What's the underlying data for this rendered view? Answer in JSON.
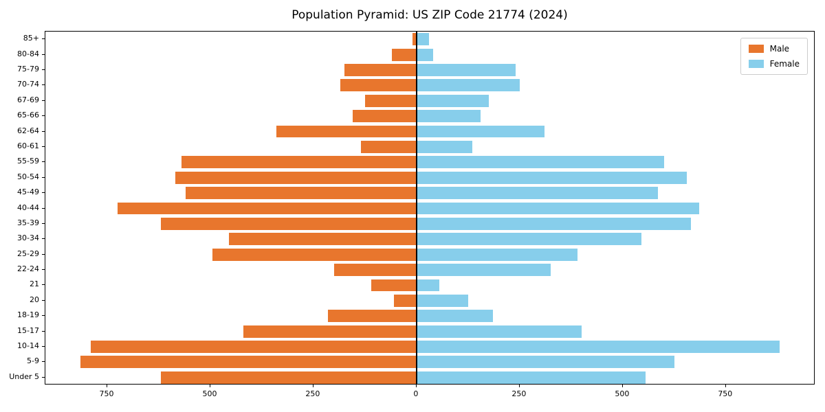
{
  "chart_data": {
    "type": "bar",
    "subtype": "population-pyramid",
    "title": "Population Pyramid: US ZIP Code 21774 (2024)",
    "xlabel": "",
    "ylabel": "",
    "grid": false,
    "categories": [
      "85+",
      "80-84",
      "75-79",
      "70-74",
      "67-69",
      "65-66",
      "62-64",
      "60-61",
      "55-59",
      "50-54",
      "45-49",
      "40-44",
      "35-39",
      "30-34",
      "25-29",
      "22-24",
      "21",
      "20",
      "18-19",
      "15-17",
      "10-14",
      "5-9",
      "Under 5"
    ],
    "series": [
      {
        "name": "Male",
        "side": "left",
        "color": "#e8762d",
        "values": [
          10,
          60,
          175,
          185,
          125,
          155,
          340,
          135,
          570,
          585,
          560,
          725,
          620,
          455,
          495,
          200,
          110,
          55,
          215,
          420,
          790,
          815,
          620
        ]
      },
      {
        "name": "Female",
        "side": "right",
        "color": "#87ceeb",
        "values": [
          30,
          40,
          240,
          250,
          175,
          155,
          310,
          135,
          600,
          655,
          585,
          685,
          665,
          545,
          390,
          325,
          55,
          125,
          185,
          400,
          880,
          625,
          555
        ]
      }
    ],
    "x_axis": {
      "tick_values": [
        -750,
        -500,
        -250,
        0,
        250,
        500,
        750
      ],
      "tick_labels": [
        "750",
        "500",
        "250",
        "0",
        "250",
        "500",
        "750"
      ],
      "xlim": [
        -900,
        967
      ]
    },
    "legend": {
      "position": "top-right",
      "entries": [
        {
          "label": "Male",
          "color": "#e8762d"
        },
        {
          "label": "Female",
          "color": "#87ceeb"
        }
      ]
    }
  },
  "colors": {
    "male": "#e8762d",
    "female": "#87ceeb",
    "axis": "#000000",
    "background": "#ffffff",
    "legend_border": "#cccccc"
  }
}
